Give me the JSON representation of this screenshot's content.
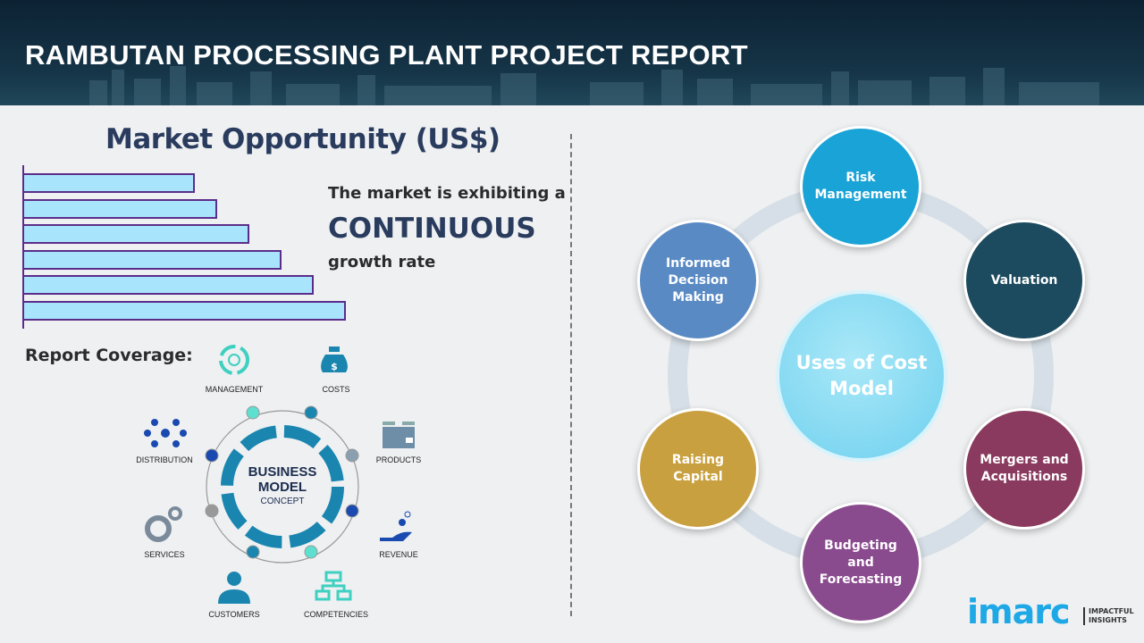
{
  "header": {
    "title": "RAMBUTAN PROCESSING PLANT PROJECT REPORT"
  },
  "market": {
    "title": "Market Opportunity (US$)",
    "bar_levels": [
      0.53,
      0.6,
      0.7,
      0.8,
      0.9,
      1.0
    ],
    "bar_fill": "#a8e4fb",
    "bar_border": "#5b2d8a",
    "line1": "The market is exhibiting a",
    "highlight": "CONTINUOUS",
    "line3": "growth rate"
  },
  "coverage": {
    "label": "Report Coverage:",
    "center_title_1": "BUSINESS",
    "center_title_2": "MODEL",
    "center_sub": "CONCEPT",
    "items": [
      "MANAGEMENT",
      "COSTS",
      "DISTRIBUTION",
      "PRODUCTS",
      "SERVICES",
      "REVENUE",
      "CUSTOMERS",
      "COMPETENCIES"
    ]
  },
  "cost_model": {
    "center": "Uses of Cost Model",
    "items": [
      {
        "label": "Risk Management",
        "color": "#1aa3d6"
      },
      {
        "label": "Valuation",
        "color": "#1c4a5e"
      },
      {
        "label": "Mergers and Acquisitions",
        "color": "#8a3a5e"
      },
      {
        "label": "Budgeting and Forecasting",
        "color": "#8a4a8e"
      },
      {
        "label": "Raising Capital",
        "color": "#c9a040"
      },
      {
        "label": "Informed Decision Making",
        "color": "#5a8ac4"
      }
    ]
  },
  "logo": {
    "brand": "imarc",
    "tagline": "IMPACTFUL INSIGHTS"
  }
}
